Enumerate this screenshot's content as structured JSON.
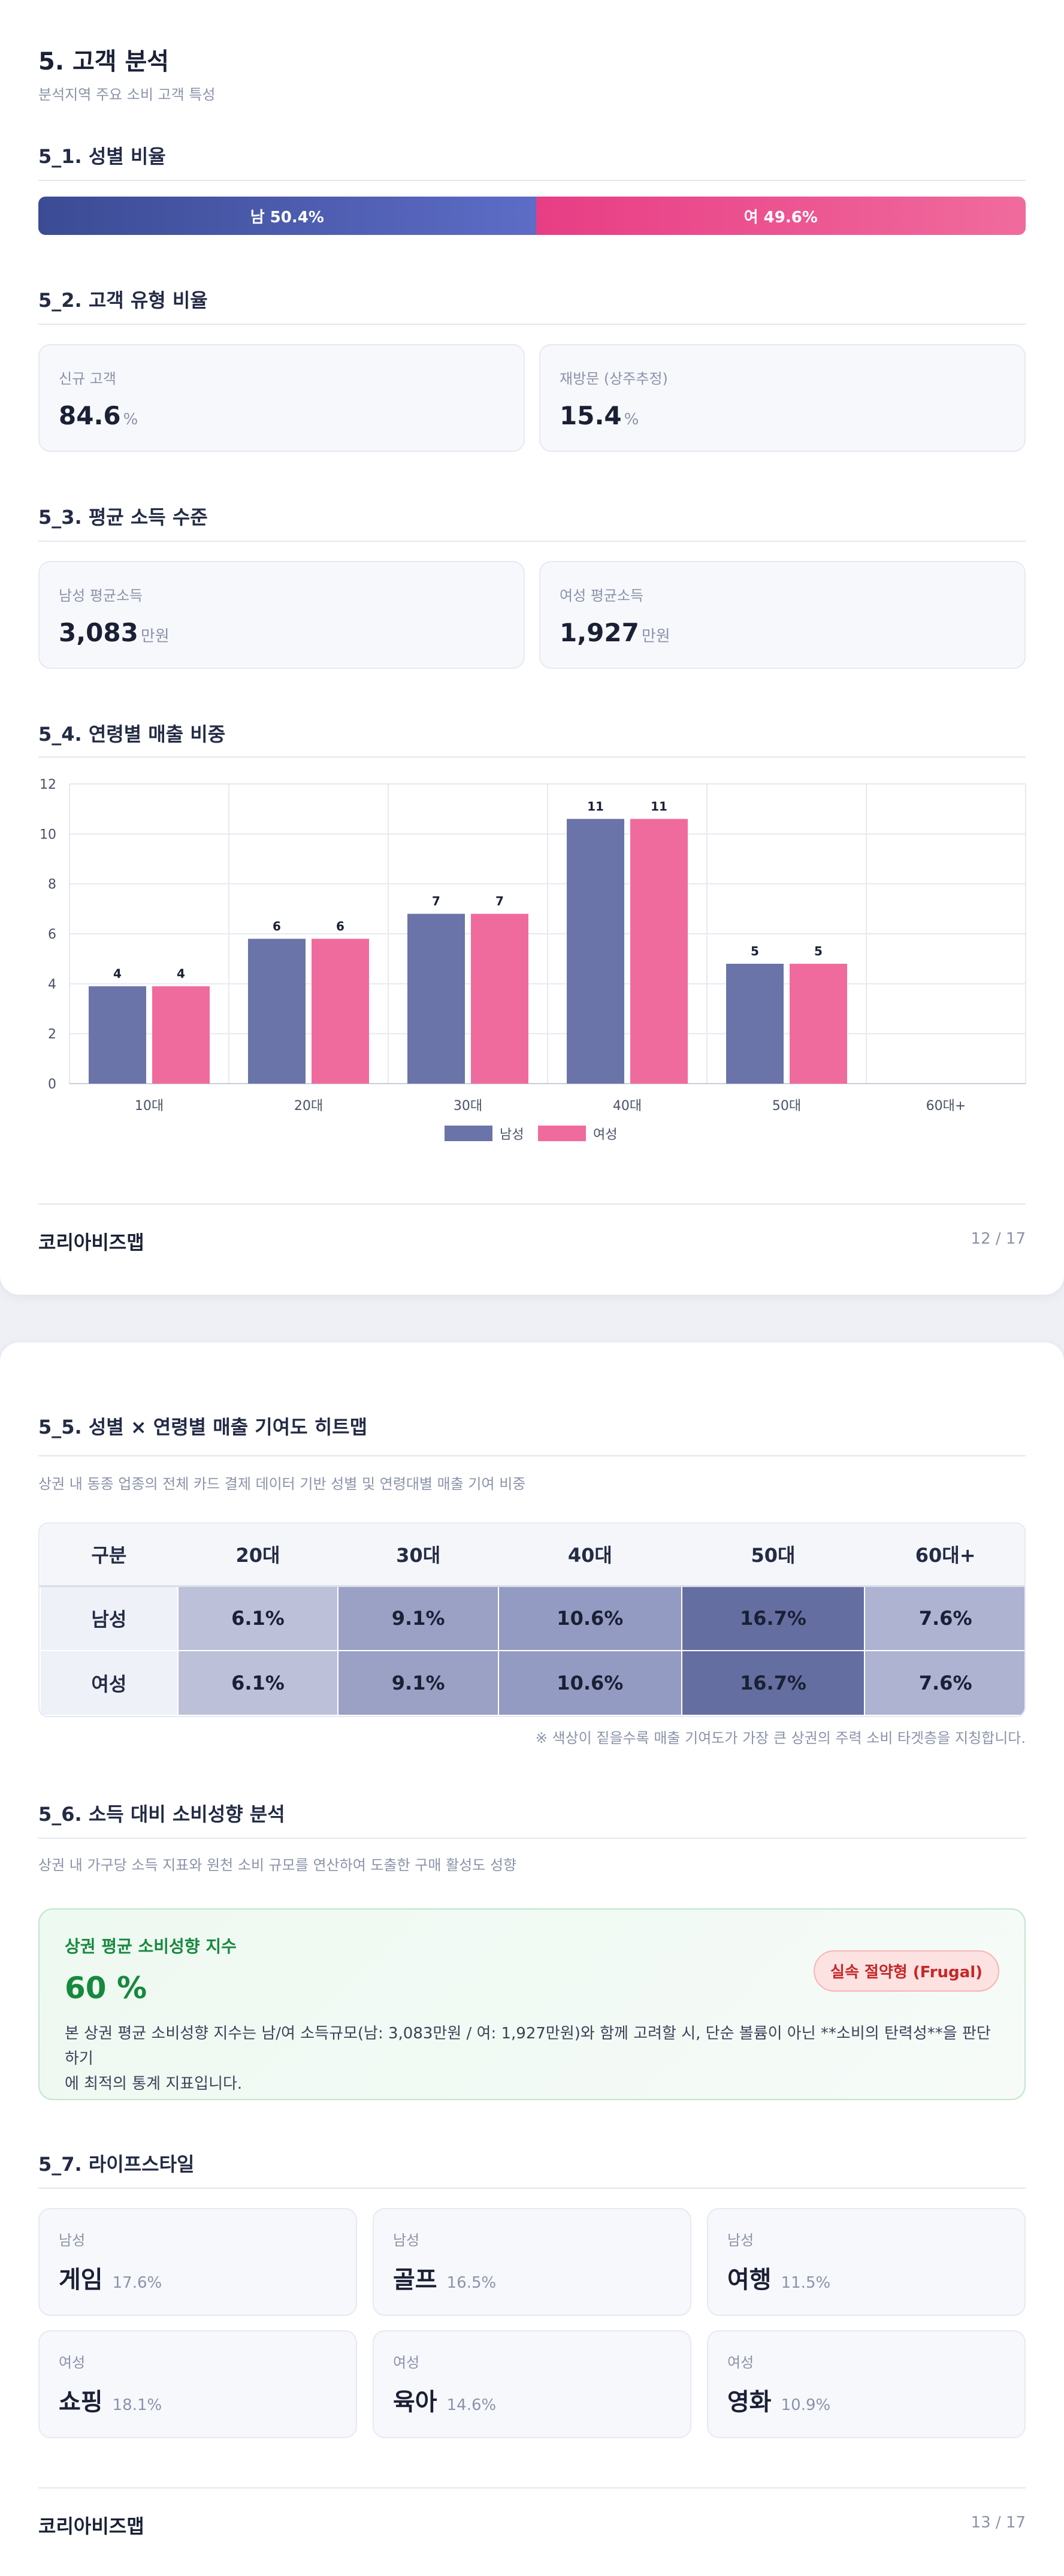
{
  "page1": {
    "title": "5. 고객 분석",
    "subtitle": "분석지역 주요 소비 고객 특성",
    "gender": {
      "title": "5_1. 성별 비율",
      "male_label": "남 50.4%",
      "female_label": "여 49.6%",
      "male_pct": 50.4,
      "female_pct": 49.6
    },
    "customer_type": {
      "title": "5_2. 고객 유형 비율",
      "cards": [
        {
          "label": "신규 고객",
          "value": "84.6",
          "unit": "%"
        },
        {
          "label": "재방문 (상주추정)",
          "value": "15.4",
          "unit": "%"
        }
      ]
    },
    "income": {
      "title": "5_3. 평균 소득 수준",
      "cards": [
        {
          "label": "남성 평균소득",
          "value": "3,083",
          "unit": "만원"
        },
        {
          "label": "여성 평균소득",
          "value": "1,927",
          "unit": "만원"
        }
      ]
    },
    "age_sales": {
      "title": "5_4. 연령별 매출 비중"
    },
    "footer": {
      "brand": "코리아비즈맵",
      "page": "12 / 17"
    }
  },
  "chart_data": {
    "type": "bar",
    "categories": [
      "10대",
      "20대",
      "30대",
      "40대",
      "50대",
      "60대+"
    ],
    "series": [
      {
        "name": "남성",
        "values": [
          3.9,
          5.8,
          6.8,
          10.6,
          4.8,
          0
        ],
        "labels": [
          "4",
          "6",
          "7",
          "11",
          "5",
          ""
        ],
        "color": "#6b74a8"
      },
      {
        "name": "여성",
        "values": [
          3.9,
          5.8,
          6.8,
          10.6,
          4.8,
          0
        ],
        "labels": [
          "4",
          "6",
          "7",
          "11",
          "5",
          ""
        ],
        "color": "#f06b9d"
      }
    ],
    "yticks": [
      "0",
      "2",
      "4",
      "6",
      "8",
      "10",
      "12"
    ],
    "ylim": [
      0,
      12
    ],
    "grid": true,
    "legend_position": "bottom-center"
  },
  "page2": {
    "heatmap": {
      "title": "5_5. 성별 × 연령별 매출 기여도 히트맵",
      "desc": "상권 내 동종 업종의 전체 카드 결제 데이터 기반 성별 및 연령대별 매출 기여 비중",
      "corner": "구분",
      "columns": [
        "20대",
        "30대",
        "40대",
        "50대",
        "60대+"
      ],
      "rows": [
        {
          "label": "남성",
          "values": [
            "6.1%",
            "9.1%",
            "10.6%",
            "16.7%",
            "7.6%"
          ]
        },
        {
          "label": "여성",
          "values": [
            "6.1%",
            "9.1%",
            "10.6%",
            "16.7%",
            "7.6%"
          ]
        }
      ],
      "cell_colors": [
        "#bcc0d8",
        "#9aa1c4",
        "#949bc2",
        "#656ea0",
        "#adb3d1"
      ],
      "note": "※ 색상이 짙을수록 매출 기여도가 가장 큰 상권의 주력 소비 타겟층을 지칭합니다."
    },
    "consumption": {
      "title": "5_6. 소득 대비 소비성향 분석",
      "desc": "상권 내 가구당 소득 지표와 원천 소비 규모를 연산하여 도출한 구매 활성도 성향",
      "box_title": "상권 평균 소비성향 지수",
      "value": "60 %",
      "badge": "실속 절약형 (Frugal)",
      "description_line1": "본 상권 평균 소비성향 지수는 남/여 소득규모(남: 3,083만원 / 여: 1,927만원)와 함께 고려할 시, 단순 볼륨이 아닌 **소비의 탄력성**을 판단하기",
      "description_line2": "에 최적의 통계 지표입니다."
    },
    "lifestyle": {
      "title": "5_7. 라이프스타일",
      "items": [
        {
          "who": "남성",
          "name": "게임",
          "pct": "17.6%"
        },
        {
          "who": "남성",
          "name": "골프",
          "pct": "16.5%"
        },
        {
          "who": "남성",
          "name": "여행",
          "pct": "11.5%"
        },
        {
          "who": "여성",
          "name": "쇼핑",
          "pct": "18.1%"
        },
        {
          "who": "여성",
          "name": "육아",
          "pct": "14.6%"
        },
        {
          "who": "여성",
          "name": "영화",
          "pct": "10.9%"
        }
      ]
    },
    "footer": {
      "brand": "코리아비즈맵",
      "page": "13 / 17"
    }
  }
}
